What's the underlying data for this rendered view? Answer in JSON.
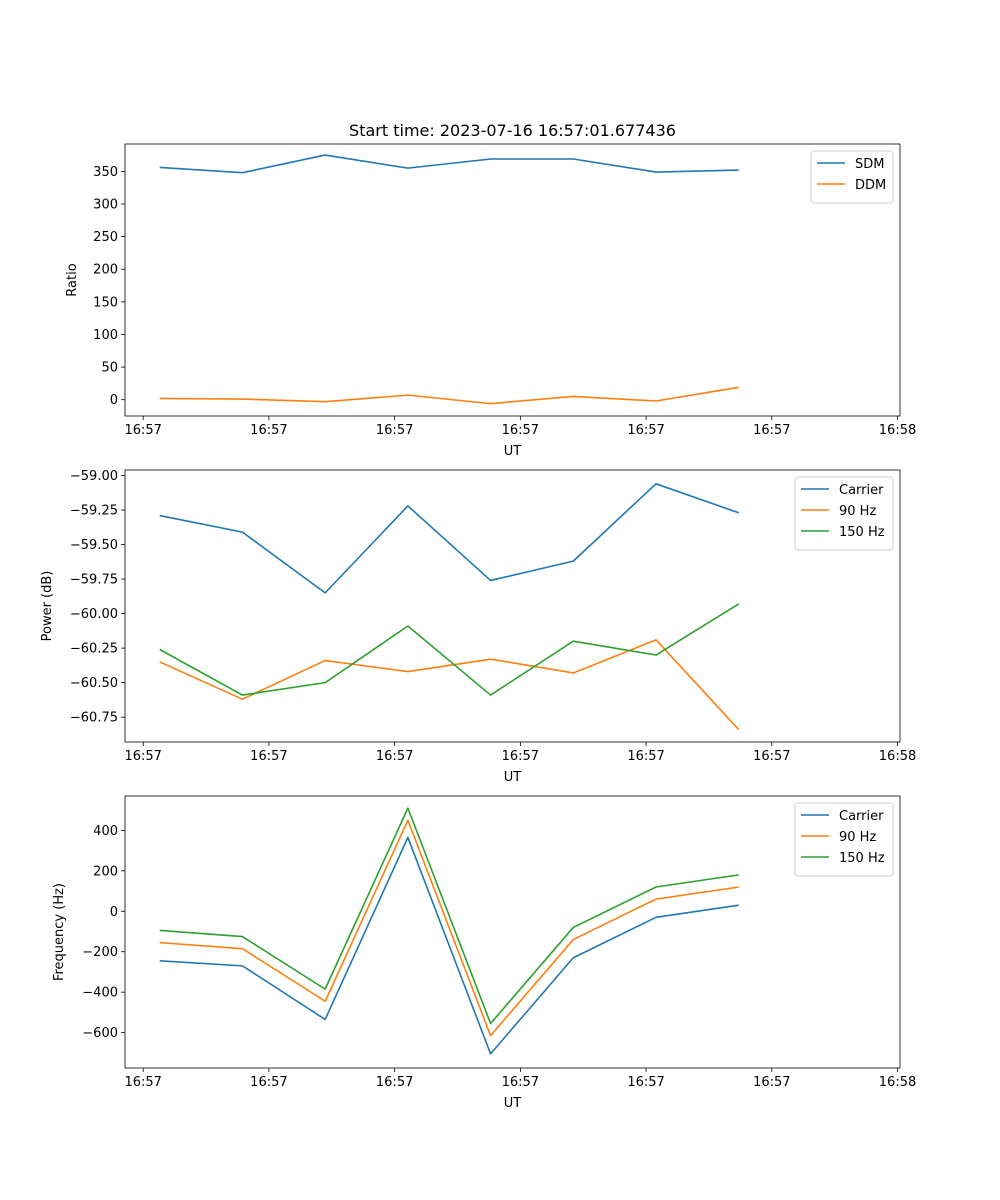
{
  "figure_title": "Start time: 2023-07-16 16:57:01.677436",
  "colors": {
    "blue": "#1f77b4",
    "orange": "#ff7f0e",
    "green": "#2ca02c"
  },
  "chart_data": [
    {
      "type": "line",
      "title": "Start time: 2023-07-16 16:57:01.677436",
      "xlabel": "UT",
      "ylabel": "Ratio",
      "xticks": {
        "positions": [
          -0.2,
          1.32,
          2.84,
          4.36,
          5.88,
          7.4,
          8.92
        ],
        "labels": [
          "16:57",
          "16:57",
          "16:57",
          "16:57",
          "16:57",
          "16:57",
          "16:58"
        ]
      },
      "xlim": [
        -0.42,
        8.95
      ],
      "ylim": [
        -25,
        392
      ],
      "yticks": [
        0,
        50,
        100,
        150,
        200,
        250,
        300,
        350
      ],
      "ytick_labels": [
        "0",
        "50",
        "100",
        "150",
        "200",
        "250",
        "300",
        "350"
      ],
      "legend_loc": "upper right",
      "x": [
        0,
        1,
        2,
        3,
        4,
        5,
        6,
        7
      ],
      "series": [
        {
          "name": "SDM",
          "color": "#1f77b4",
          "values": [
            356,
            348,
            375,
            355,
            369,
            369,
            349,
            352
          ]
        },
        {
          "name": "DDM",
          "color": "#ff7f0e",
          "values": [
            2,
            1,
            -3,
            7,
            -6,
            5,
            -2,
            19
          ]
        }
      ]
    },
    {
      "type": "line",
      "title": "",
      "xlabel": "UT",
      "ylabel": "Power (dB)",
      "xticks": {
        "positions": [
          -0.2,
          1.32,
          2.84,
          4.36,
          5.88,
          7.4,
          8.92
        ],
        "labels": [
          "16:57",
          "16:57",
          "16:57",
          "16:57",
          "16:57",
          "16:57",
          "16:58"
        ]
      },
      "xlim": [
        -0.42,
        8.95
      ],
      "ylim": [
        -60.93,
        -58.96
      ],
      "yticks": [
        -60.75,
        -60.5,
        -60.25,
        -60.0,
        -59.75,
        -59.5,
        -59.25,
        -59.0
      ],
      "ytick_labels": [
        "−60.75",
        "−60.50",
        "−60.25",
        "−60.00",
        "−59.75",
        "−59.50",
        "−59.25",
        "−59.00"
      ],
      "legend_loc": "upper right",
      "x": [
        0,
        1,
        2,
        3,
        4,
        5,
        6,
        7
      ],
      "series": [
        {
          "name": "Carrier",
          "color": "#1f77b4",
          "values": [
            -59.29,
            -59.41,
            -59.85,
            -59.22,
            -59.76,
            -59.62,
            -59.06,
            -59.27
          ]
        },
        {
          "name": "90 Hz",
          "color": "#ff7f0e",
          "values": [
            -60.35,
            -60.62,
            -60.34,
            -60.42,
            -60.33,
            -60.43,
            -60.19,
            -60.84
          ]
        },
        {
          "name": "150 Hz",
          "color": "#2ca02c",
          "values": [
            -60.26,
            -60.59,
            -60.5,
            -60.09,
            -60.59,
            -60.2,
            -60.3,
            -59.93
          ]
        }
      ]
    },
    {
      "type": "line",
      "title": "",
      "xlabel": "UT",
      "ylabel": "Frequency (Hz)",
      "xticks": {
        "positions": [
          -0.2,
          1.32,
          2.84,
          4.36,
          5.88,
          7.4,
          8.92
        ],
        "labels": [
          "16:57",
          "16:57",
          "16:57",
          "16:57",
          "16:57",
          "16:57",
          "16:58"
        ]
      },
      "xlim": [
        -0.42,
        8.95
      ],
      "ylim": [
        -775,
        570
      ],
      "yticks": [
        -600,
        -400,
        -200,
        0,
        200,
        400
      ],
      "ytick_labels": [
        "−600",
        "−400",
        "−200",
        "0",
        "200",
        "400"
      ],
      "legend_loc": "upper right",
      "x": [
        0,
        1,
        2,
        3,
        4,
        5,
        6,
        7
      ],
      "series": [
        {
          "name": "Carrier",
          "color": "#1f77b4",
          "values": [
            -245,
            -270,
            -535,
            365,
            -705,
            -230,
            -30,
            30
          ]
        },
        {
          "name": "90 Hz",
          "color": "#ff7f0e",
          "values": [
            -155,
            -185,
            -445,
            450,
            -615,
            -140,
            60,
            120
          ]
        },
        {
          "name": "150 Hz",
          "color": "#2ca02c",
          "values": [
            -95,
            -125,
            -385,
            510,
            -555,
            -80,
            120,
            180
          ]
        }
      ]
    }
  ]
}
